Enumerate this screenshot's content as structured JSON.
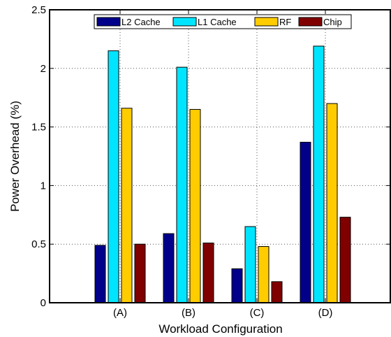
{
  "chart_data": {
    "type": "bar",
    "title": "",
    "xlabel": "Workload Configuration",
    "ylabel": "Power Overhead (%)",
    "categories": [
      "(A)",
      "(B)",
      "(C)",
      "(D)"
    ],
    "ylim": [
      0,
      2.5
    ],
    "yticks": [
      "0",
      "0.5",
      "1",
      "1.5",
      "2",
      "2.5"
    ],
    "grid": true,
    "legend_position": "top",
    "series": [
      {
        "name": "L2 Cache",
        "color": "#00008b",
        "values": [
          0.49,
          0.59,
          0.29,
          1.37
        ]
      },
      {
        "name": "L1 Cache",
        "color": "#00e5ff",
        "values": [
          2.15,
          2.01,
          0.65,
          2.19
        ]
      },
      {
        "name": "RF",
        "color": "#ffcc00",
        "values": [
          1.66,
          1.65,
          0.48,
          1.7
        ]
      },
      {
        "name": "Chip",
        "color": "#800000",
        "values": [
          0.5,
          0.51,
          0.18,
          0.73
        ]
      }
    ]
  }
}
